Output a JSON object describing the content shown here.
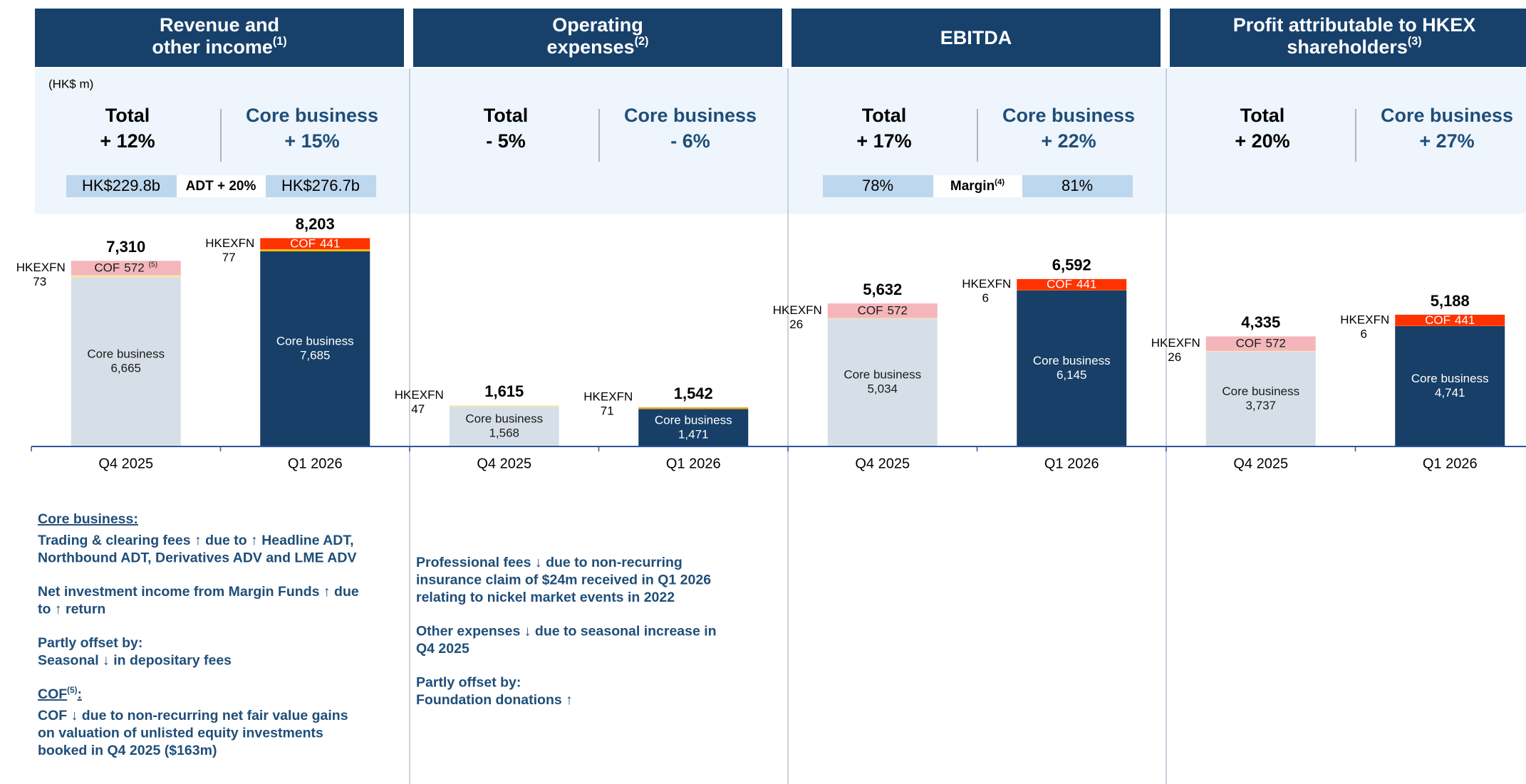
{
  "unit_note": "(HK$ m)",
  "chart_data": [
    {
      "type": "bar",
      "title_lines": [
        "Revenue and",
        "other income"
      ],
      "title_note": "(1)",
      "summary": [
        {
          "label": "Total",
          "value": "+ 12%"
        },
        {
          "label": "Core business",
          "value": "+ 15%"
        }
      ],
      "metrics": {
        "left": "HK$229.8b",
        "middle": "ADT + 20%",
        "right": "HK$276.7b"
      },
      "categories": [
        "Q4 2025",
        "Q1 2026"
      ],
      "ylim": [
        0,
        9000
      ],
      "series": [
        {
          "name": "Core business",
          "colors": [
            "#d6dfe8",
            "#173f67"
          ],
          "values": [
            6665,
            7685
          ],
          "value_labels": [
            "6,665",
            "7,685"
          ]
        },
        {
          "name": "HKEXFN",
          "colors": [
            "#ffe699",
            "#ffc000"
          ],
          "values": [
            73,
            77
          ]
        },
        {
          "name": "COF",
          "colors": [
            "#f4b6bb",
            "#ff3300"
          ],
          "values": [
            572,
            441
          ],
          "label_notes": [
            "(5)",
            null
          ]
        }
      ],
      "totals": [
        7310,
        8203
      ],
      "total_labels": [
        "7,310",
        "8,203"
      ],
      "notes": [
        {
          "heading": "Core business:"
        },
        {
          "lines": [
            "Trading & clearing fees ↑ due to ↑ Headline ADT,",
            "Northbound ADT, Derivatives ADV and LME ADV"
          ]
        },
        {
          "lines": [
            "Net investment income from Margin Funds ↑ due",
            "to ↑ return"
          ]
        },
        {
          "lines": [
            "Partly offset by:",
            "Seasonal ↓ in depositary fees"
          ]
        },
        {
          "heading": "COF",
          "heading_note": "(5)",
          "heading_tail": ":"
        },
        {
          "lines": [
            "COF ↓ due to non-recurring net fair value gains",
            "on valuation of unlisted equity investments",
            "booked in Q4 2025 ($163m)"
          ]
        }
      ]
    },
    {
      "type": "bar",
      "title_lines": [
        "Operating",
        "expenses"
      ],
      "title_note": "(2)",
      "summary": [
        {
          "label": "Total",
          "value": "- 5%"
        },
        {
          "label": "Core business",
          "value": "- 6%"
        }
      ],
      "categories": [
        "Q4 2025",
        "Q1 2026"
      ],
      "ylim": [
        0,
        9000
      ],
      "series": [
        {
          "name": "Core business",
          "colors": [
            "#d6dfe8",
            "#173f67"
          ],
          "values": [
            1568,
            1471
          ],
          "value_labels": [
            "1,568",
            "1,471"
          ]
        },
        {
          "name": "HKEXFN",
          "colors": [
            "#ffe699",
            "#f5a623"
          ],
          "values": [
            47,
            71
          ]
        }
      ],
      "totals": [
        1615,
        1542
      ],
      "total_labels": [
        "1,615",
        "1,542"
      ],
      "notes": [
        {
          "lines": [
            "Professional fees ↓ due to non-recurring",
            "insurance claim of $24m received in Q1 2026",
            "relating to nickel market events in 2022"
          ]
        },
        {
          "lines": [
            "Other expenses ↓ due to seasonal increase in",
            "Q4 2025"
          ]
        },
        {
          "lines": [
            "Partly offset by:",
            "Foundation donations ↑"
          ]
        }
      ]
    },
    {
      "type": "bar",
      "title_lines": [
        "EBITDA"
      ],
      "summary": [
        {
          "label": "Total",
          "value": "+ 17%"
        },
        {
          "label": "Core business",
          "value": "+ 22%"
        }
      ],
      "metrics": {
        "left": "78%",
        "middle": "Margin",
        "middle_note": "(4)",
        "right": "81%"
      },
      "categories": [
        "Q4 2025",
        "Q1 2026"
      ],
      "ylim": [
        0,
        9000
      ],
      "series": [
        {
          "name": "Core business",
          "colors": [
            "#d6dfe8",
            "#173f67"
          ],
          "values": [
            5034,
            6145
          ],
          "value_labels": [
            "5,034",
            "6,145"
          ]
        },
        {
          "name": "HKEXFN",
          "colors": [
            "#ffe699",
            "#ffc000"
          ],
          "values": [
            26,
            6
          ]
        },
        {
          "name": "COF",
          "colors": [
            "#f4b6bb",
            "#ff3300"
          ],
          "values": [
            572,
            441
          ]
        }
      ],
      "totals": [
        5632,
        6592
      ],
      "total_labels": [
        "5,632",
        "6,592"
      ]
    },
    {
      "type": "bar",
      "title_lines": [
        "Profit attributable to HKEX",
        "shareholders"
      ],
      "title_note": "(3)",
      "summary": [
        {
          "label": "Total",
          "value": "+ 20%"
        },
        {
          "label": "Core business",
          "value": "+ 27%"
        }
      ],
      "categories": [
        "Q4 2025",
        "Q1 2026"
      ],
      "ylim": [
        0,
        9000
      ],
      "series": [
        {
          "name": "Core business",
          "colors": [
            "#d6dfe8",
            "#173f67"
          ],
          "values": [
            3737,
            4741
          ],
          "value_labels": [
            "3,737",
            "4,741"
          ]
        },
        {
          "name": "HKEXFN",
          "colors": [
            "#ffe699",
            "#ffc000"
          ],
          "values": [
            26,
            6
          ]
        },
        {
          "name": "COF",
          "colors": [
            "#f4b6bb",
            "#ff3300"
          ],
          "values": [
            572,
            441
          ]
        }
      ],
      "totals": [
        4335,
        5188
      ],
      "total_labels": [
        "4,335",
        "5,188"
      ]
    }
  ]
}
